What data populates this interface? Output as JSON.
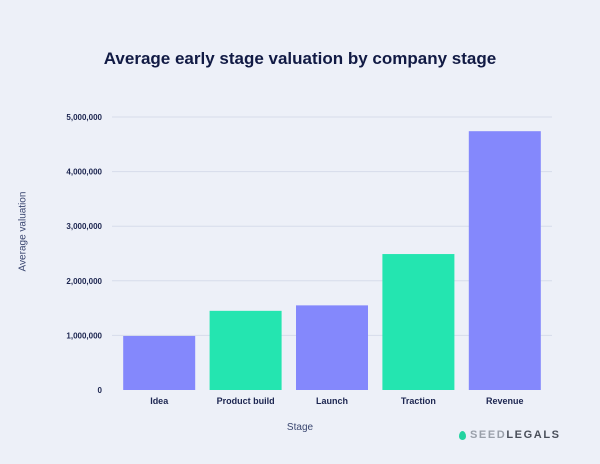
{
  "chart_data": {
    "type": "bar",
    "title": "Average early stage valuation by company stage",
    "xlabel": "Stage",
    "ylabel": "Average valuation",
    "ylim": [
      0,
      5000000
    ],
    "yticks": [
      0,
      1000000,
      2000000,
      3000000,
      4000000,
      5000000
    ],
    "ytick_labels": [
      "0",
      "1,000,000",
      "2,000,000",
      "3,000,000",
      "4,000,000",
      "5,000,000"
    ],
    "grid": true,
    "categories": [
      "Idea",
      "Product build",
      "Launch",
      "Traction",
      "Revenue"
    ],
    "values": [
      990000,
      1450000,
      1550000,
      2490000,
      4740000
    ],
    "bar_colors": [
      "#8488fc",
      "#24e5b0",
      "#8488fc",
      "#24e5b0",
      "#8488fc"
    ]
  },
  "logo": {
    "part1": "SEED",
    "part2": "LEGALS"
  }
}
